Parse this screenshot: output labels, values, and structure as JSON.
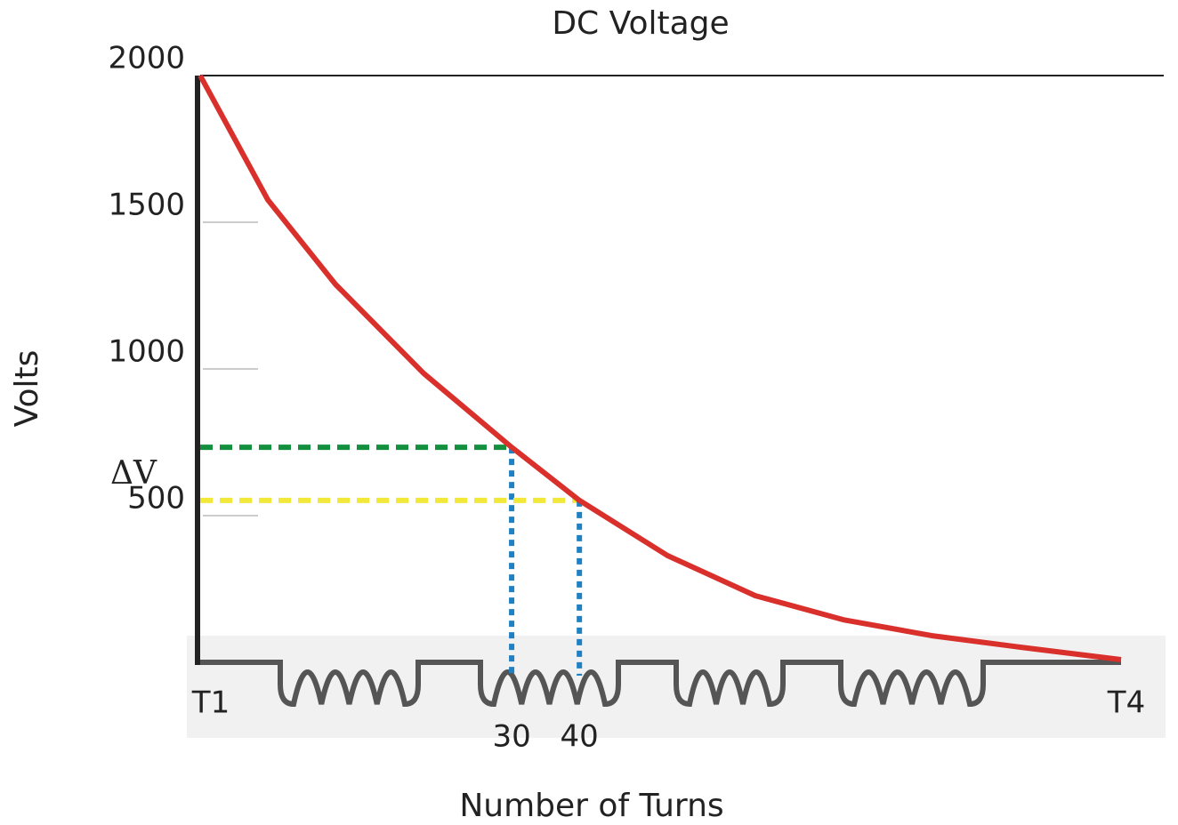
{
  "chart_data": {
    "type": "line",
    "title": "DC Voltage",
    "x_label": "Number of Turns",
    "y_label": "Volts",
    "x": [
      -16,
      -6,
      4,
      17,
      30,
      40,
      53,
      66,
      79,
      92,
      105,
      120
    ],
    "series": [
      {
        "color": "#d9302c",
        "values": [
          2000,
          1576,
          1288,
          985,
          733,
          552,
          364,
          227,
          145,
          91,
          52,
          9
        ]
      }
    ],
    "xlim": [
      -16,
      120
    ],
    "ylim": [
      0,
      2000
    ],
    "xticks": [
      30,
      40
    ],
    "yticks": [
      500,
      1000,
      1500,
      2000
    ],
    "end_labels": [
      "T1",
      "T4"
    ],
    "guides": [
      {
        "x": 30,
        "y": 733,
        "color": "#12903e"
      },
      {
        "x": 40,
        "y": 552,
        "color": "#f2e83a"
      }
    ],
    "guide_vertical_color": "#1f80c4",
    "annotation": "ΔV"
  }
}
